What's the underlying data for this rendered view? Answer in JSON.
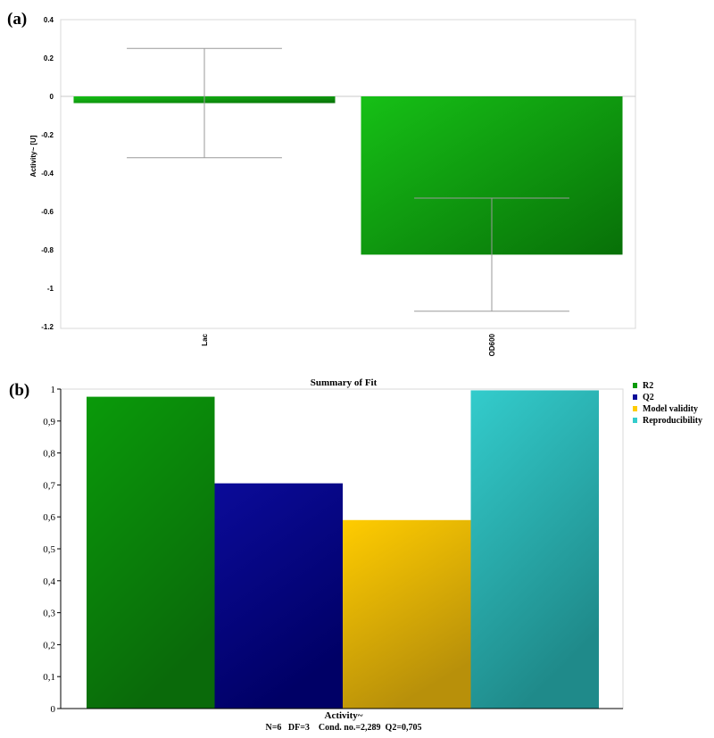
{
  "chart_data": [
    {
      "panel": "(a)",
      "type": "bar",
      "title": "",
      "ylabel": "Activity~ [U]",
      "xlabel": "",
      "ylim": [
        -1.2,
        0.4
      ],
      "yticks": [
        "0.4",
        "0.2",
        "0",
        "-0.2",
        "-0.4",
        "-0.6",
        "-0.8",
        "-1",
        "-1.2"
      ],
      "categories": [
        "Lac",
        "OD600"
      ],
      "values": [
        -0.035,
        -0.825
      ],
      "error_low": [
        -0.32,
        -1.12
      ],
      "error_high": [
        0.25,
        -0.53
      ],
      "grid": false,
      "colors": {
        "bar_light": "#13b813",
        "bar_dark": "#0a7a0a"
      }
    },
    {
      "panel": "(b)",
      "type": "bar",
      "title": "Summary of Fit",
      "xlabel": "Activity~",
      "footnote": "N=6   DF=3    Cond. no.=2,289  Q2=0,705",
      "ylabel": "",
      "ylim": [
        0,
        1
      ],
      "yticks": [
        "1",
        "0,9",
        "0,8",
        "0,7",
        "0,6",
        "0,5",
        "0,4",
        "0,3",
        "0,2",
        "0,1",
        "0"
      ],
      "legend_position": "top-right",
      "series": [
        {
          "name": "R2",
          "value": 0.976,
          "color": "#0a9a0a",
          "dark": "#0a6a0a"
        },
        {
          "name": "Q2",
          "value": 0.705,
          "color": "#0b0b99",
          "dark": "#000066"
        },
        {
          "name": "Model validity",
          "value": 0.59,
          "color": "#ffcc00",
          "dark": "#b8900a"
        },
        {
          "name": "Reproducibility",
          "value": 0.996,
          "color": "#33cccc",
          "dark": "#1f8a8a"
        }
      ]
    }
  ]
}
